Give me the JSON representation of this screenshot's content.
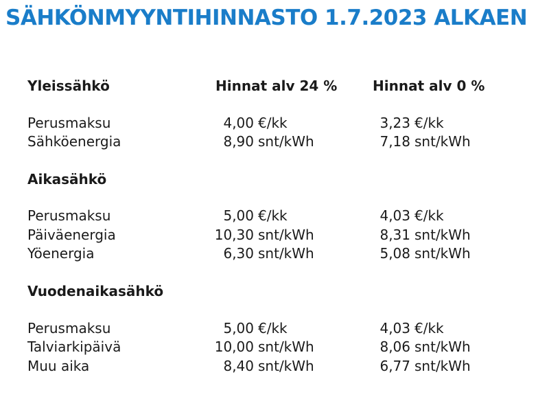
{
  "title": "SÄHKÖNMYYNTIHINNASTO 1.7.2023 ALKAEN",
  "colors": {
    "title": "#1a7dc9",
    "text": "#1a1a1a"
  },
  "columns": {
    "vat": "Hinnat alv 24 %",
    "novat": "Hinnat alv 0 %"
  },
  "sections": [
    {
      "heading": "Yleissähkö",
      "rows": [
        {
          "label": "Perusmaksu",
          "vat": {
            "num": "4,00",
            "unit": "€/kk"
          },
          "novat": {
            "num": "3,23",
            "unit": "€/kk"
          }
        },
        {
          "label": "Sähköenergia",
          "vat": {
            "num": "8,90",
            "unit": "snt/kWh"
          },
          "novat": {
            "num": "7,18",
            "unit": "snt/kWh"
          }
        }
      ]
    },
    {
      "heading": "Aikasähkö",
      "rows": [
        {
          "label": "Perusmaksu",
          "vat": {
            "num": "5,00",
            "unit": "€/kk"
          },
          "novat": {
            "num": "4,03",
            "unit": "€/kk"
          }
        },
        {
          "label": "Päiväenergia",
          "vat": {
            "num": "10,30",
            "unit": "snt/kWh"
          },
          "novat": {
            "num": "8,31",
            "unit": "snt/kWh"
          }
        },
        {
          "label": "Yöenergia",
          "vat": {
            "num": "6,30",
            "unit": "snt/kWh"
          },
          "novat": {
            "num": "5,08",
            "unit": "snt/kWh"
          }
        }
      ]
    },
    {
      "heading": "Vuodenaikasähkö",
      "rows": [
        {
          "label": "Perusmaksu",
          "vat": {
            "num": "5,00",
            "unit": "€/kk"
          },
          "novat": {
            "num": "4,03",
            "unit": "€/kk"
          }
        },
        {
          "label": "Talviarkipäivä",
          "vat": {
            "num": "10,00",
            "unit": "snt/kWh"
          },
          "novat": {
            "num": "8,06",
            "unit": "snt/kWh"
          }
        },
        {
          "label": "Muu aika",
          "vat": {
            "num": "8,40",
            "unit": "snt/kWh"
          },
          "novat": {
            "num": "6,77",
            "unit": "snt/kWh"
          }
        }
      ]
    }
  ]
}
